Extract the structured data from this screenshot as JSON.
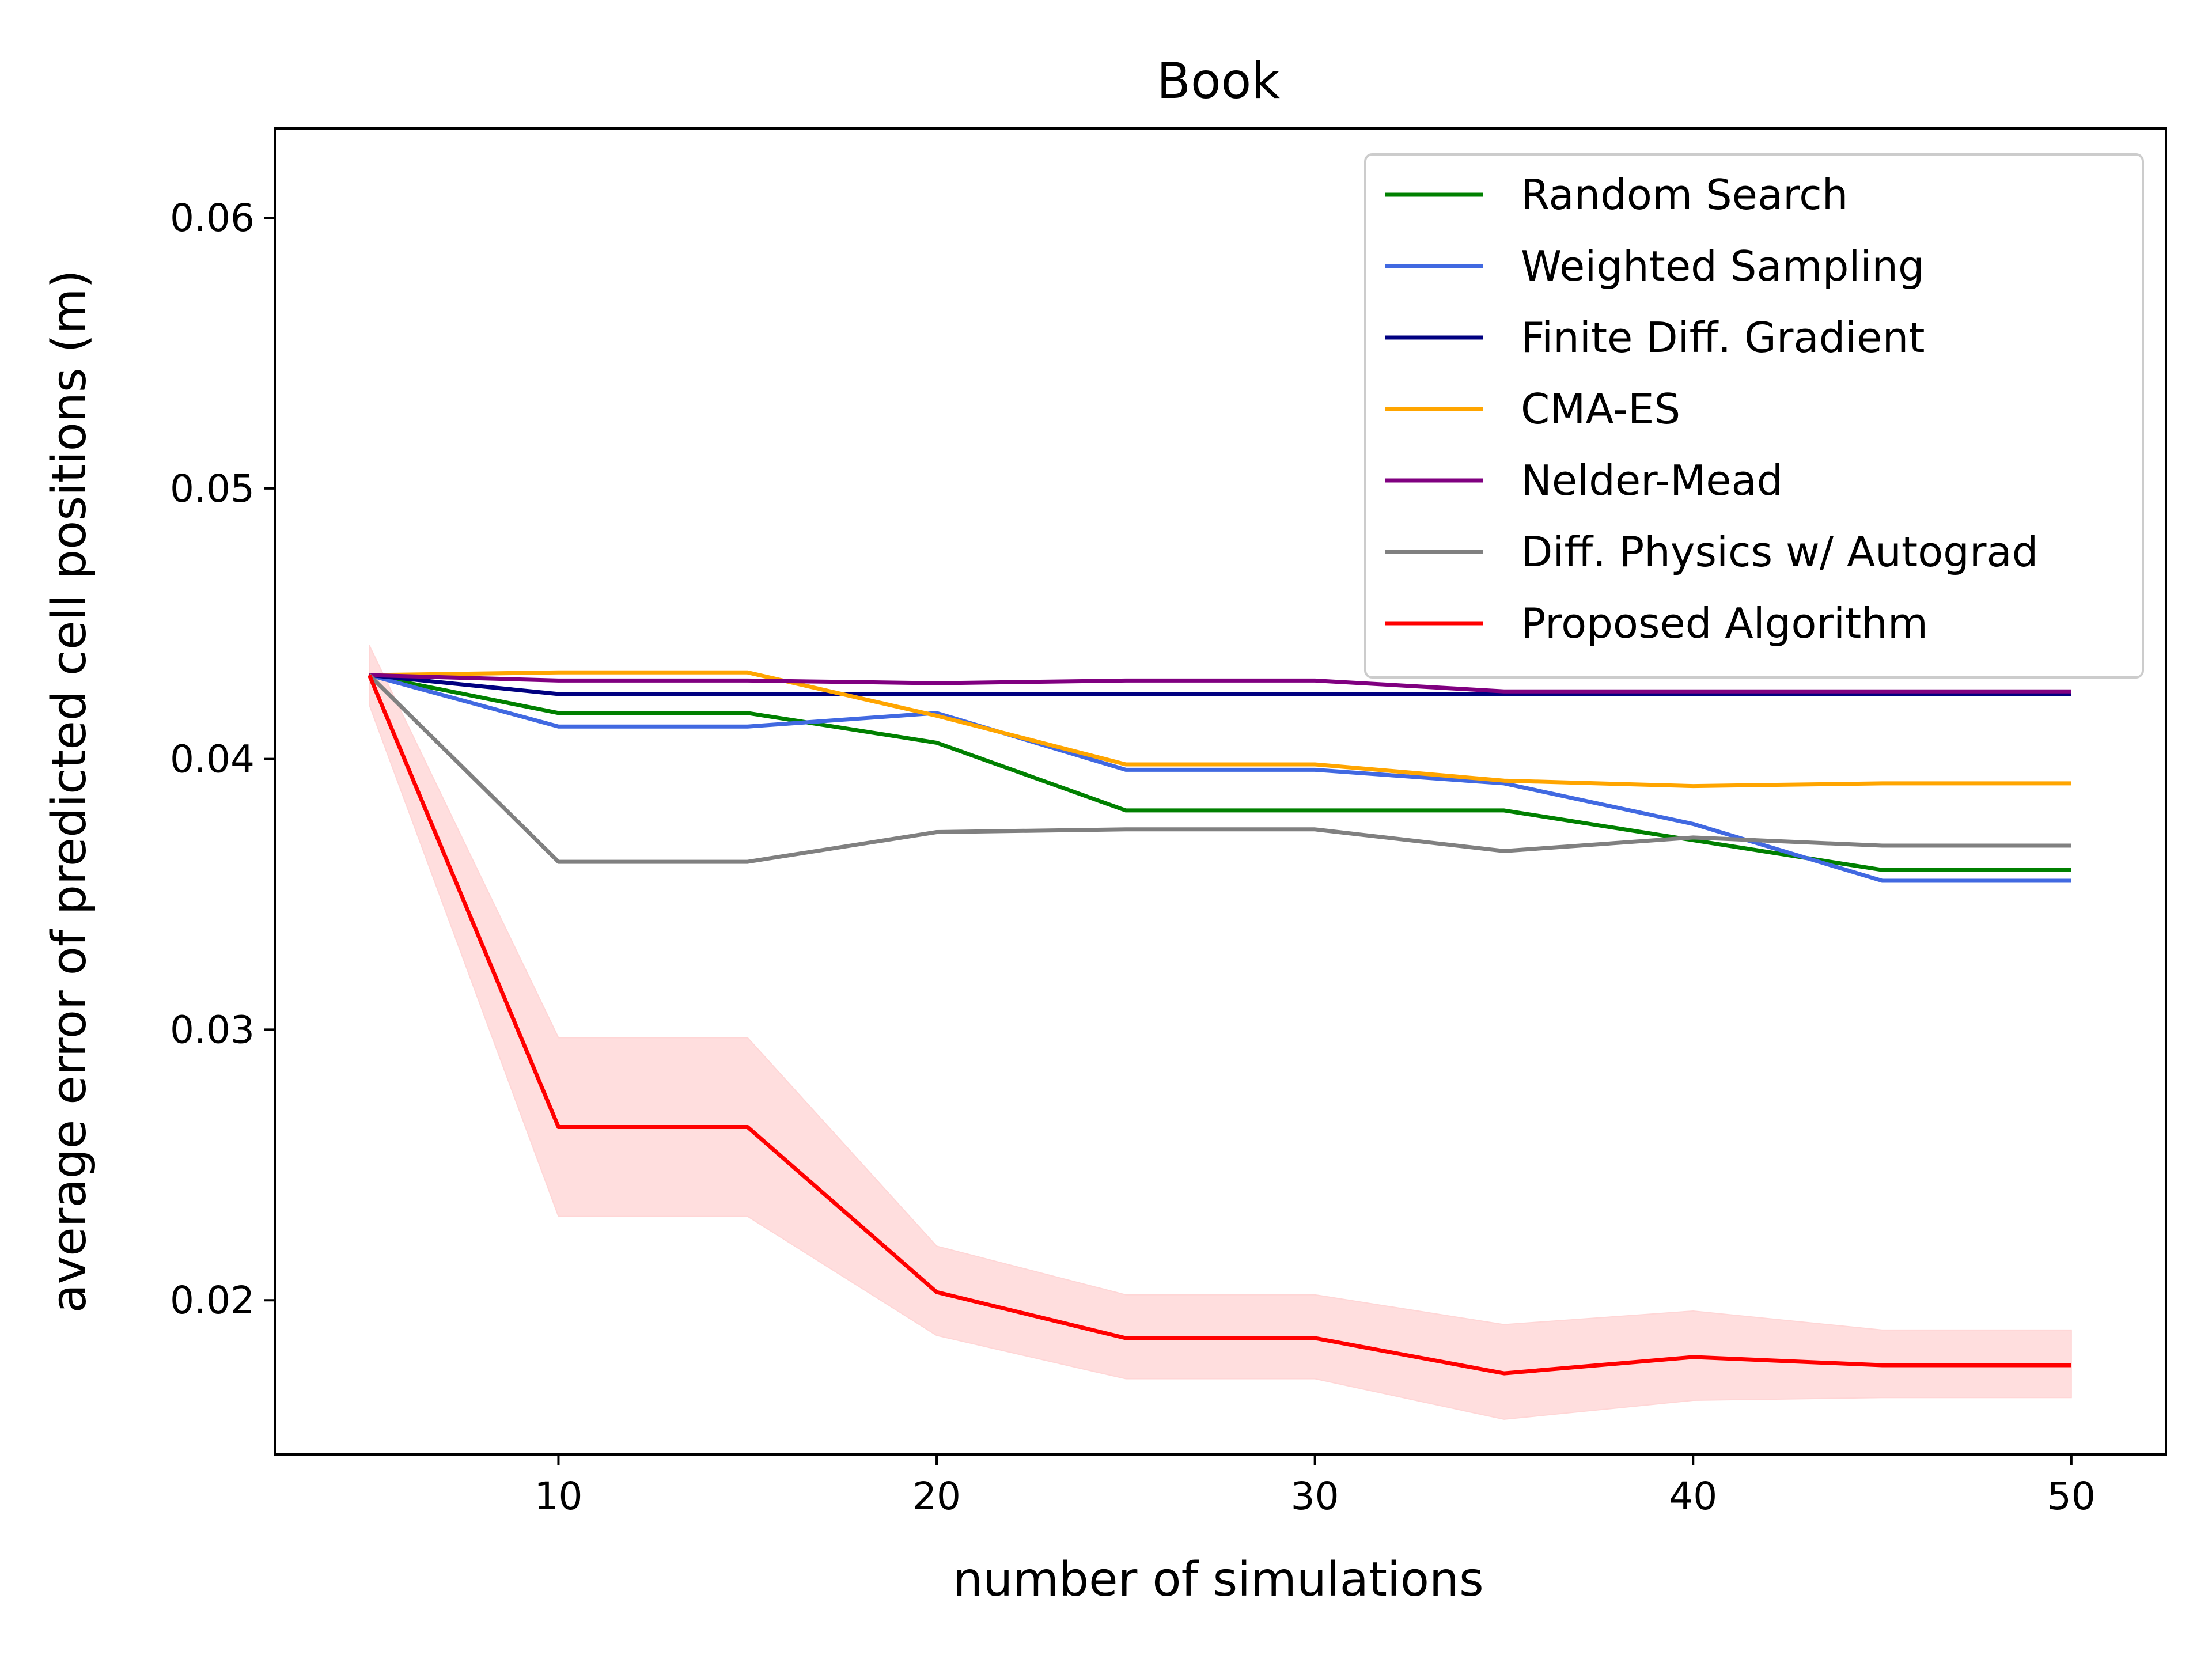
{
  "chart_data": {
    "type": "line",
    "title": "Book",
    "xlabel": "number of simulations",
    "ylabel": "average error of predicted cell positions (m)",
    "xlim": [
      2.5,
      52.5
    ],
    "ylim": [
      0.0143,
      0.0633
    ],
    "xticks": [
      "10",
      "20",
      "30",
      "40",
      "50"
    ],
    "yticks": [
      "0.02",
      "0.03",
      "0.04",
      "0.05",
      "0.06"
    ],
    "legend_position": "top-right",
    "grid": false,
    "x": [
      5,
      10,
      15,
      20,
      25,
      30,
      35,
      40,
      45,
      50
    ],
    "series": [
      {
        "name": "Random Search",
        "color": "#008000",
        "values": [
          0.0431,
          0.0417,
          0.0417,
          0.0406,
          0.0381,
          0.0381,
          0.0381,
          0.037,
          0.0359,
          0.0359
        ]
      },
      {
        "name": "Weighted Sampling",
        "color": "#4169E1",
        "values": [
          0.0431,
          0.0412,
          0.0412,
          0.0417,
          0.0396,
          0.0396,
          0.0391,
          0.0376,
          0.0355,
          0.0355
        ]
      },
      {
        "name": "Finite Diff. Gradient",
        "color": "#000080",
        "values": [
          0.0431,
          0.0424,
          0.0424,
          0.0424,
          0.0424,
          0.0424,
          0.0424,
          0.0424,
          0.0424,
          0.0424
        ]
      },
      {
        "name": "CMA-ES",
        "color": "#FFA500",
        "values": [
          0.0431,
          0.0432,
          0.0432,
          0.0416,
          0.0398,
          0.0398,
          0.0392,
          0.039,
          0.0391,
          0.0391
        ]
      },
      {
        "name": "Nelder-Mead",
        "color": "#800080",
        "values": [
          0.0431,
          0.0429,
          0.0429,
          0.0428,
          0.0429,
          0.0429,
          0.0425,
          0.0425,
          0.0425,
          0.0425
        ]
      },
      {
        "name": "Diff. Physics w/ Autograd",
        "color": "#808080",
        "values": [
          0.0431,
          0.0362,
          0.0362,
          0.0373,
          0.0374,
          0.0374,
          0.0366,
          0.0371,
          0.0368,
          0.0368
        ]
      },
      {
        "name": "Proposed Algorithm",
        "color": "#FF0000",
        "values": [
          0.0431,
          0.0264,
          0.0264,
          0.0203,
          0.0186,
          0.0186,
          0.0173,
          0.0179,
          0.0176,
          0.0176
        ],
        "band_lower": [
          0.042,
          0.0231,
          0.0231,
          0.0187,
          0.0171,
          0.0171,
          0.0156,
          0.0163,
          0.0164,
          0.0164
        ],
        "band_upper": [
          0.0442,
          0.0297,
          0.0297,
          0.022,
          0.0202,
          0.0202,
          0.0191,
          0.0196,
          0.0189,
          0.0189
        ],
        "band_color": "#FFD6D6"
      }
    ]
  }
}
